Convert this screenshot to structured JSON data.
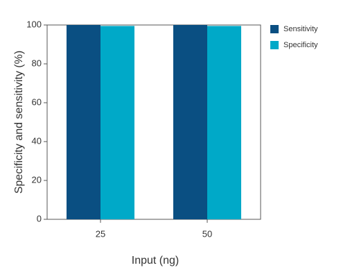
{
  "chart_data": {
    "type": "bar",
    "xlabel": "Input (ng)",
    "ylabel": "Specificity and sensitivity (%)",
    "categories": [
      "25",
      "50"
    ],
    "series": [
      {
        "name": "Sensitivity",
        "color": "#0a4f82",
        "values": [
          100,
          100
        ]
      },
      {
        "name": "Specificity",
        "color": "#00a9c8",
        "values": [
          99.5,
          99.5
        ]
      }
    ],
    "ylim": [
      0,
      100
    ],
    "yticks": [
      0,
      20,
      40,
      60,
      80,
      100
    ],
    "legend": "right"
  }
}
